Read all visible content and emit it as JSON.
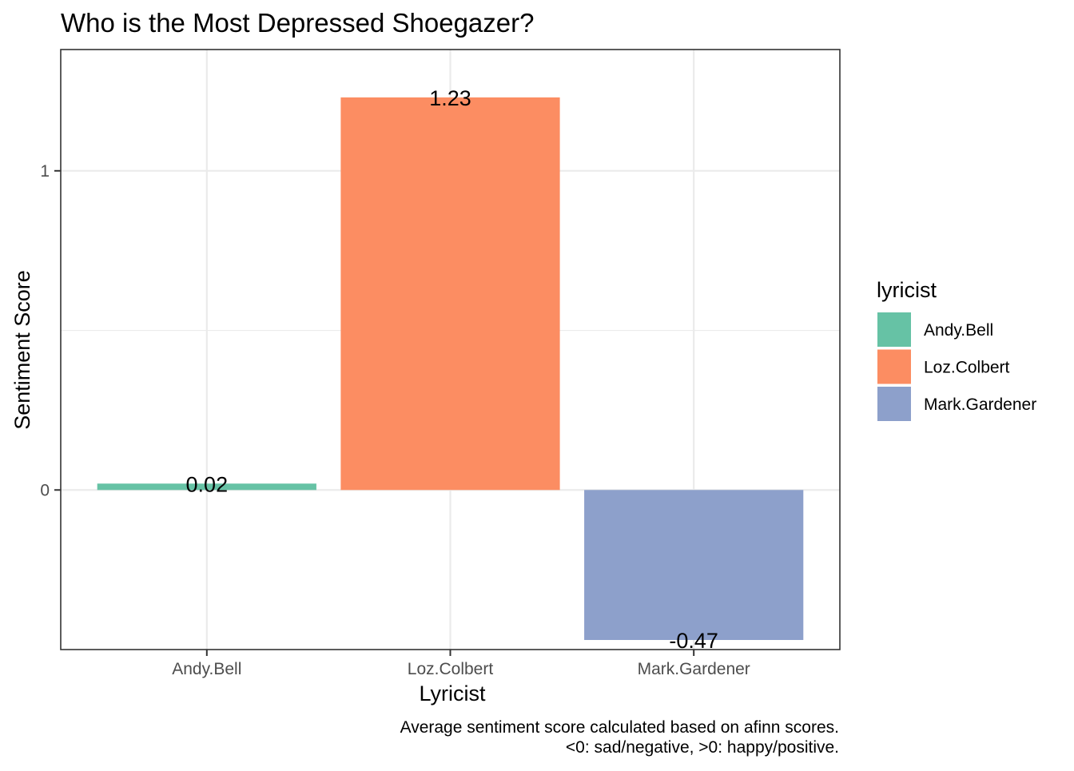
{
  "chart_data": {
    "type": "bar",
    "title": "Who is the Most Depressed Shoegazer?",
    "xlabel": "Lyricist",
    "ylabel": "Sentiment Score",
    "categories": [
      "Andy.Bell",
      "Loz.Colbert",
      "Mark.Gardener"
    ],
    "values": [
      0.02,
      1.23,
      -0.47
    ],
    "data_labels": [
      "0.02",
      "1.23",
      "-0.47"
    ],
    "colors": [
      "#66c2a5",
      "#fc8d62",
      "#8da0cb"
    ],
    "ylim": [
      -0.5,
      1.38
    ],
    "y_ticks": [
      0,
      1
    ],
    "y_tick_labels": [
      "0",
      "1"
    ],
    "grid": true,
    "legend": {
      "title": "lyricist",
      "position": "right",
      "entries": [
        "Andy.Bell",
        "Loz.Colbert",
        "Mark.Gardener"
      ]
    },
    "caption": [
      "Average sentiment score calculated based on afinn scores.",
      "<0: sad/negative, >0: happy/positive."
    ]
  }
}
